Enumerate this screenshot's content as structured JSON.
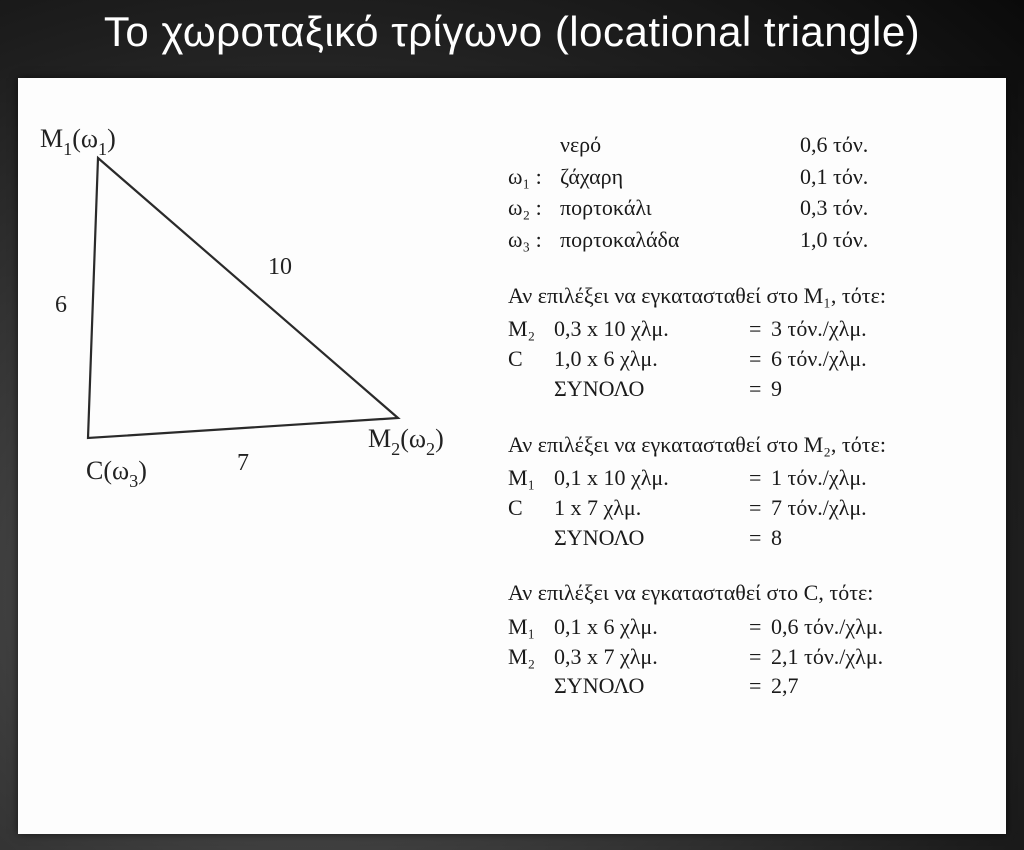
{
  "title": "Το χωροταξικό τρίγωνο (locational triangle)",
  "triangle": {
    "vertices": {
      "m1": "M",
      "m1_sub": "1",
      "m1_w": "(ω",
      "m1_wsub": "1",
      "m1_close": ")",
      "m2": "M",
      "m2_sub": "2",
      "m2_w": "(ω",
      "m2_wsub": "2",
      "m2_close": ")",
      "c": "C(ω",
      "c_wsub": "3",
      "c_close": ")"
    },
    "edges": {
      "m1m2": "10",
      "m1c": "6",
      "cm2": "7"
    },
    "geometry": {
      "M1": [
        80,
        80
      ],
      "M2": [
        380,
        340
      ],
      "C": [
        70,
        360
      ]
    },
    "stroke": "#2a2a2a",
    "stroke_width": 2.2
  },
  "materials": [
    {
      "sym": "",
      "name": "νερό",
      "val": "0,6 τόν."
    },
    {
      "sym": "ω₁ :",
      "name": "ζάχαρη",
      "val": "0,1 τόν."
    },
    {
      "sym": "ω₂ :",
      "name": "πορτοκάλι",
      "val": "0,3 τόν."
    },
    {
      "sym": "ω₃ :",
      "name": "πορτοκαλάδα",
      "val": "1,0 τόν."
    }
  ],
  "cases": [
    {
      "title": "Αν επιλέξει να εγκατασταθεί στο M₁, τότε:",
      "rows": [
        {
          "a": "M₂",
          "b": "0,3 x 10 χλμ.",
          "c": "3 τόν./χλμ."
        },
        {
          "a": "C",
          "b": "1,0 x 6 χλμ.",
          "c": "6 τόν./χλμ."
        },
        {
          "a": "",
          "b": "ΣΥΝΟΛΟ",
          "c": "9"
        }
      ]
    },
    {
      "title": "Αν επιλέξει να εγκατασταθεί στο M₂, τότε:",
      "rows": [
        {
          "a": "M₁",
          "b": "0,1 x 10 χλμ.",
          "c": "1 τόν./χλμ."
        },
        {
          "a": "C",
          "b": "1 x 7 χλμ.",
          "c": "7 τόν./χλμ."
        },
        {
          "a": "",
          "b": "ΣΥΝΟΛΟ",
          "c": "8"
        }
      ]
    },
    {
      "title": "Αν επιλέξει να εγκατασταθεί στο C, τότε:",
      "rows": [
        {
          "a": "M₁",
          "b": "0,1 x 6 χλμ.",
          "c": "0,6 τόν./χλμ."
        },
        {
          "a": "M₂",
          "b": "0,3 x 7 χλμ.",
          "c": "2,1 τόν./χλμ."
        },
        {
          "a": "",
          "b": "ΣΥΝΟΛΟ",
          "c": "2,7"
        }
      ]
    }
  ],
  "eq": "="
}
